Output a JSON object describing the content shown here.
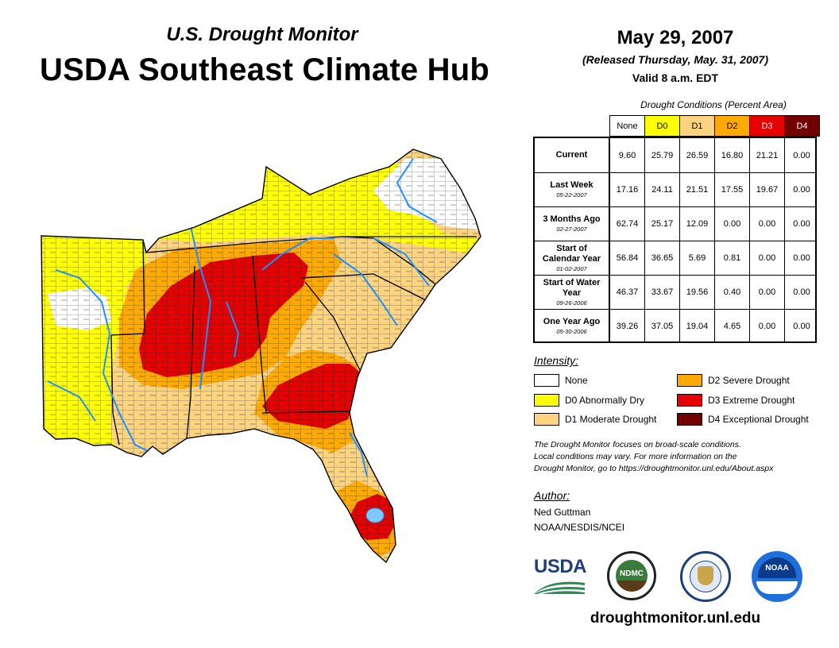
{
  "header": {
    "subtitle": "U.S. Drought Monitor",
    "title": "USDA Southeast Climate Hub",
    "date": "May 29, 2007",
    "released": "(Released Thursday, May. 31, 2007)",
    "valid": "Valid 8 a.m. EDT"
  },
  "conditions": {
    "title": "Drought Conditions (Percent Area)",
    "columns": [
      {
        "label": "None",
        "color": "#ffffff",
        "text_color": "#000000"
      },
      {
        "label": "D0",
        "color": "#ffff00",
        "text_color": "#000000"
      },
      {
        "label": "D1",
        "color": "#fcd37f",
        "text_color": "#000000"
      },
      {
        "label": "D2",
        "color": "#ffaa00",
        "text_color": "#000000"
      },
      {
        "label": "D3",
        "color": "#e60000",
        "text_color": "#ffffff"
      },
      {
        "label": "D4",
        "color": "#730000",
        "text_color": "#ffffff"
      }
    ],
    "rows": [
      {
        "label": "Current",
        "date": "",
        "values": [
          "9.60",
          "25.79",
          "26.59",
          "16.80",
          "21.21",
          "0.00"
        ]
      },
      {
        "label": "Last Week",
        "date": "05-22-2007",
        "values": [
          "17.16",
          "24.11",
          "21.51",
          "17.55",
          "19.67",
          "0.00"
        ]
      },
      {
        "label": "3 Months Ago",
        "date": "02-27-2007",
        "values": [
          "62.74",
          "25.17",
          "12.09",
          "0.00",
          "0.00",
          "0.00"
        ]
      },
      {
        "label": "Start of Calendar Year",
        "date": "01-02-2007",
        "values": [
          "56.84",
          "36.65",
          "5.69",
          "0.81",
          "0.00",
          "0.00"
        ]
      },
      {
        "label": "Start of Water Year",
        "date": "09-26-2006",
        "values": [
          "46.37",
          "33.67",
          "19.56",
          "0.40",
          "0.00",
          "0.00"
        ]
      },
      {
        "label": "One Year Ago",
        "date": "05-30-2006",
        "values": [
          "39.26",
          "37.05",
          "19.04",
          "4.65",
          "0.00",
          "0.00"
        ]
      }
    ]
  },
  "legend": {
    "title": "Intensity:",
    "items": [
      {
        "label": "None",
        "color": "#ffffff"
      },
      {
        "label": "D0 Abnormally Dry",
        "color": "#ffff00"
      },
      {
        "label": "D1 Moderate Drought",
        "color": "#fcd37f"
      },
      {
        "label": "D2 Severe Drought",
        "color": "#ffaa00"
      },
      {
        "label": "D3 Extreme Drought",
        "color": "#e60000"
      },
      {
        "label": "D4 Exceptional Drought",
        "color": "#730000"
      }
    ]
  },
  "note": {
    "line1": "The Drought Monitor focuses on broad-scale conditions.",
    "line2": "Local conditions may vary. For more information on the",
    "line3": "Drought Monitor, go to https://droughtmonitor.unl.edu/About.aspx"
  },
  "author": {
    "title": "Author:",
    "name": "Ned Guttman",
    "org": "NOAA/NESDIS/NCEI"
  },
  "logos": {
    "usda": "USDA",
    "ndmc": "NDMC",
    "noaa": "NOAA"
  },
  "footer": {
    "url": "droughtmonitor.unl.edu"
  },
  "map": {
    "region": "Southeast United States",
    "colors": {
      "none": "#ffffff",
      "d0": "#ffff00",
      "d1": "#fcd37f",
      "d2": "#ffaa00",
      "d3": "#e60000",
      "water": "#1e90ff",
      "county_lines": "#2a2a2a"
    }
  }
}
